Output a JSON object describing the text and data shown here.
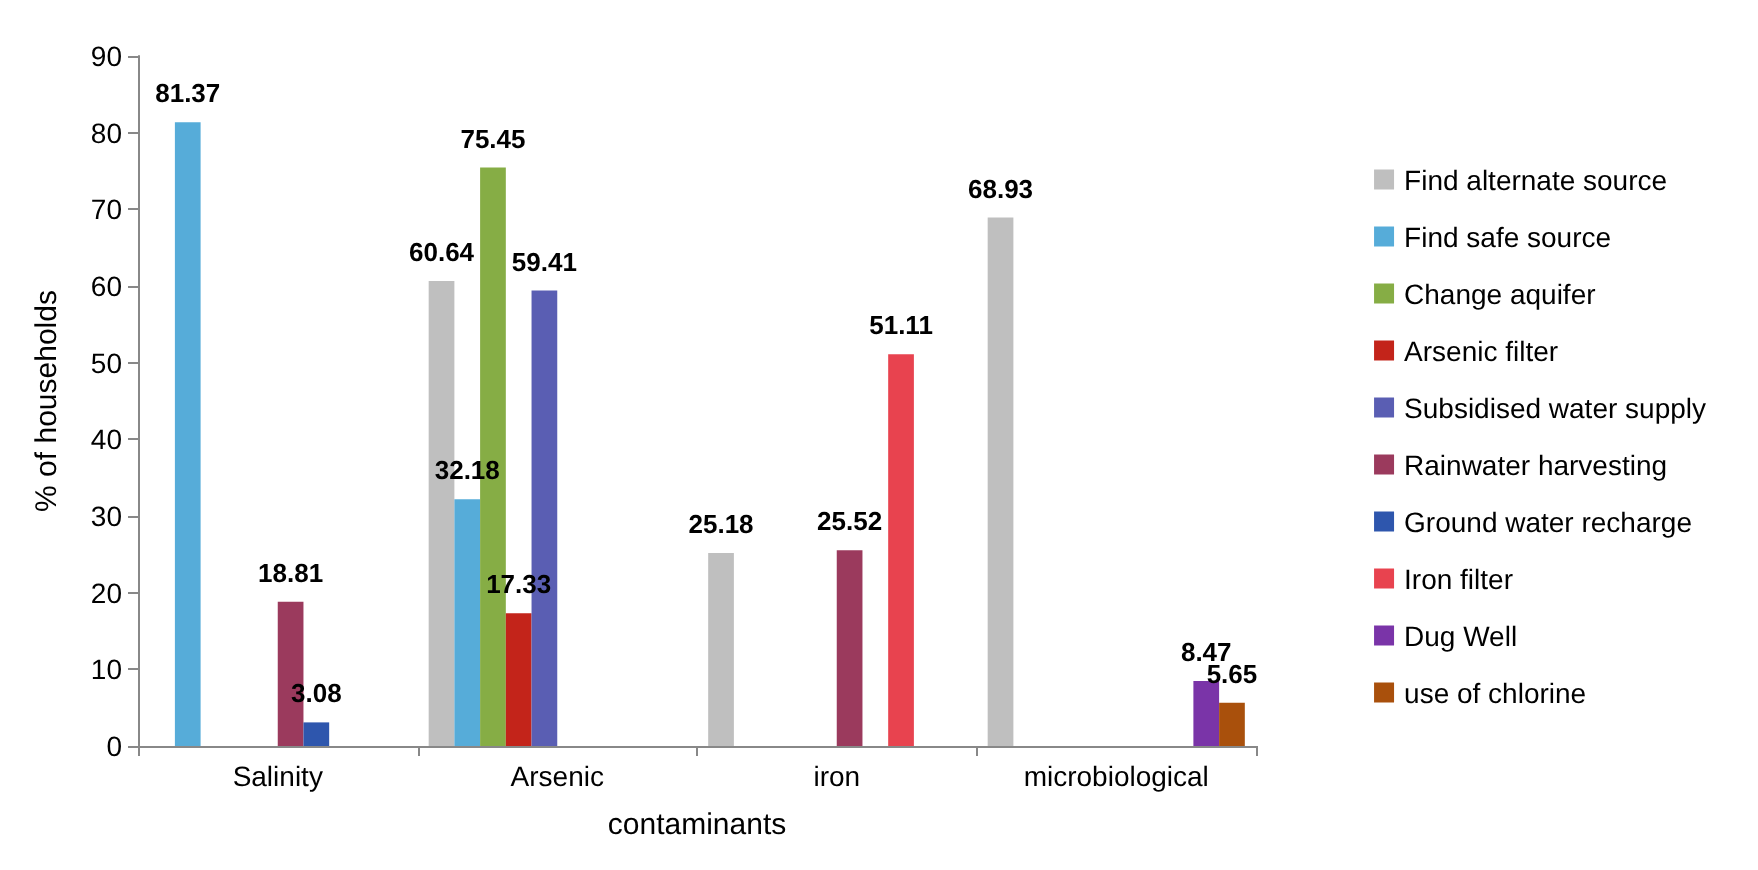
{
  "chart_data": {
    "type": "bar",
    "xlabel": "contaminants",
    "ylabel": "% of households",
    "categories": [
      "Salinity",
      "Arsenic",
      "iron",
      "microbiological"
    ],
    "series": [
      {
        "name": "Find alternate source",
        "color": "#bfbfbf",
        "values": [
          null,
          60.64,
          25.18,
          68.93
        ]
      },
      {
        "name": "Find safe source",
        "color": "#56acd9",
        "values": [
          81.37,
          32.18,
          null,
          null
        ]
      },
      {
        "name": "Change aquifer",
        "color": "#86ad45",
        "values": [
          null,
          75.45,
          null,
          null
        ]
      },
      {
        "name": "Arsenic filter",
        "color": "#c3241a",
        "values": [
          null,
          17.33,
          null,
          null
        ]
      },
      {
        "name": "Subsidised water supply",
        "color": "#5a5eb3",
        "values": [
          null,
          59.41,
          null,
          null
        ]
      },
      {
        "name": "Rainwater harvesting",
        "color": "#9b3a5d",
        "values": [
          18.81,
          null,
          25.52,
          null
        ]
      },
      {
        "name": "Ground water recharge",
        "color": "#2e56ad",
        "values": [
          3.08,
          null,
          null,
          null
        ]
      },
      {
        "name": "Iron filter",
        "color": "#e8434f",
        "values": [
          null,
          null,
          51.11,
          null
        ]
      },
      {
        "name": "Dug Well",
        "color": "#7a34a8",
        "values": [
          null,
          null,
          null,
          8.47
        ]
      },
      {
        "name": "use of chlorine",
        "color": "#a9500c",
        "values": [
          null,
          null,
          null,
          5.65
        ]
      }
    ],
    "ylim": [
      0,
      90
    ],
    "yticks": [
      0,
      10,
      20,
      30,
      40,
      50,
      60,
      70,
      80,
      90
    ],
    "grid": false,
    "legend": "right",
    "data_labels": true
  }
}
